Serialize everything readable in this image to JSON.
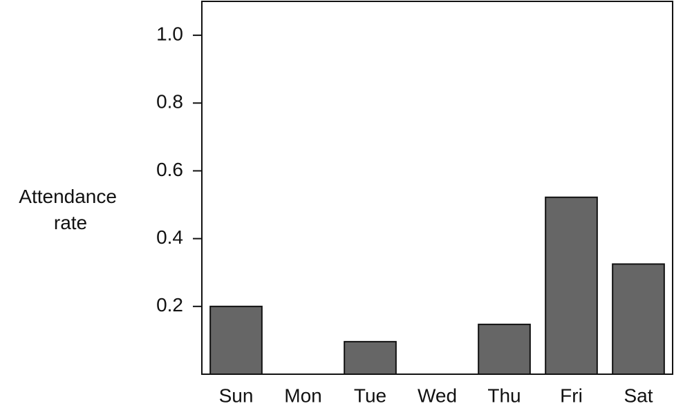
{
  "chart_data": {
    "type": "bar",
    "y_label": "Attendance rate",
    "categories": [
      "Sun",
      "Mon",
      "Tue",
      "Wed",
      "Thu",
      "Fri",
      "Sat"
    ],
    "values": [
      0.2,
      0,
      0.096,
      0,
      0.147,
      0.522,
      0.325
    ],
    "color": "#666666",
    "ylim": [
      0,
      1.1
    ],
    "yticks": [
      0.2,
      0.4,
      0.6,
      0.8,
      {
        "value": 1,
        "label": "1.0"
      }
    ]
  }
}
